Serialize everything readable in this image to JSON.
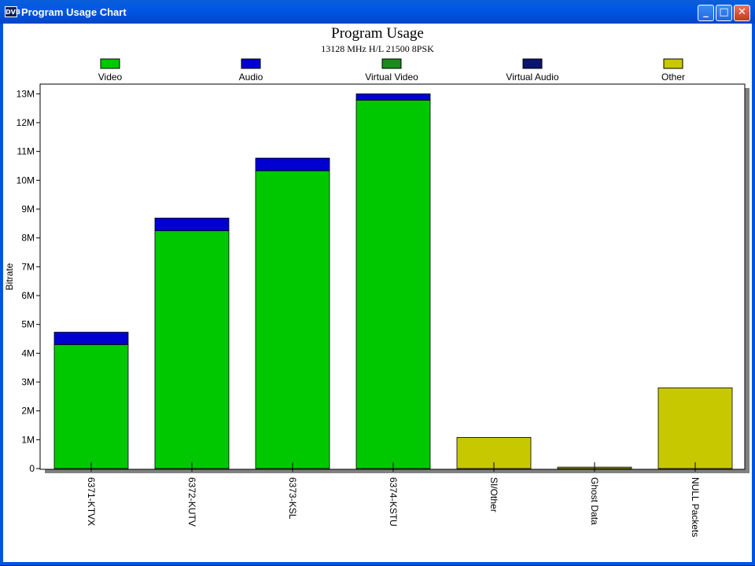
{
  "window": {
    "title": "Program Usage Chart",
    "app_icon": "DVB",
    "buttons": [
      "minimize-icon",
      "maximize-icon",
      "close-icon"
    ]
  },
  "chart_data": {
    "type": "bar",
    "stacked": true,
    "title": "Program Usage",
    "subtitle": "13128 MHz H/L 21500 8PSK",
    "ylabel": "Bitrate",
    "xlabel": "",
    "ylim": [
      0,
      13200000
    ],
    "yticks": [
      0,
      1000000,
      2000000,
      3000000,
      4000000,
      5000000,
      6000000,
      7000000,
      8000000,
      9000000,
      10000000,
      11000000,
      12000000,
      13000000
    ],
    "ytick_labels": [
      "0",
      "1M",
      "2M",
      "3M",
      "4M",
      "5M",
      "6M",
      "7M",
      "8M",
      "9M",
      "10M",
      "11M",
      "12M",
      "13M"
    ],
    "legend_position": "top",
    "categories": [
      "6371-KTVX",
      "6372-KUTV",
      "6373-KSL",
      "6374-KSTU",
      "SI/Other",
      "Ghost Data",
      "NULL Packets"
    ],
    "series": [
      {
        "name": "Video",
        "color": "#00c800",
        "values": [
          4300000,
          8250000,
          10330000,
          12780000,
          0,
          0,
          0
        ]
      },
      {
        "name": "Audio",
        "color": "#0000d0",
        "values": [
          430000,
          440000,
          440000,
          220000,
          0,
          0,
          0
        ]
      },
      {
        "name": "Virtual Video",
        "color": "#1a8a1a",
        "values": [
          0,
          0,
          0,
          0,
          0,
          0,
          0
        ]
      },
      {
        "name": "Virtual Audio",
        "color": "#0b1470",
        "values": [
          0,
          0,
          0,
          0,
          0,
          0,
          0
        ]
      },
      {
        "name": "Other",
        "color": "#c8c800",
        "values": [
          0,
          0,
          0,
          0,
          1080000,
          50000,
          2800000
        ]
      }
    ]
  }
}
